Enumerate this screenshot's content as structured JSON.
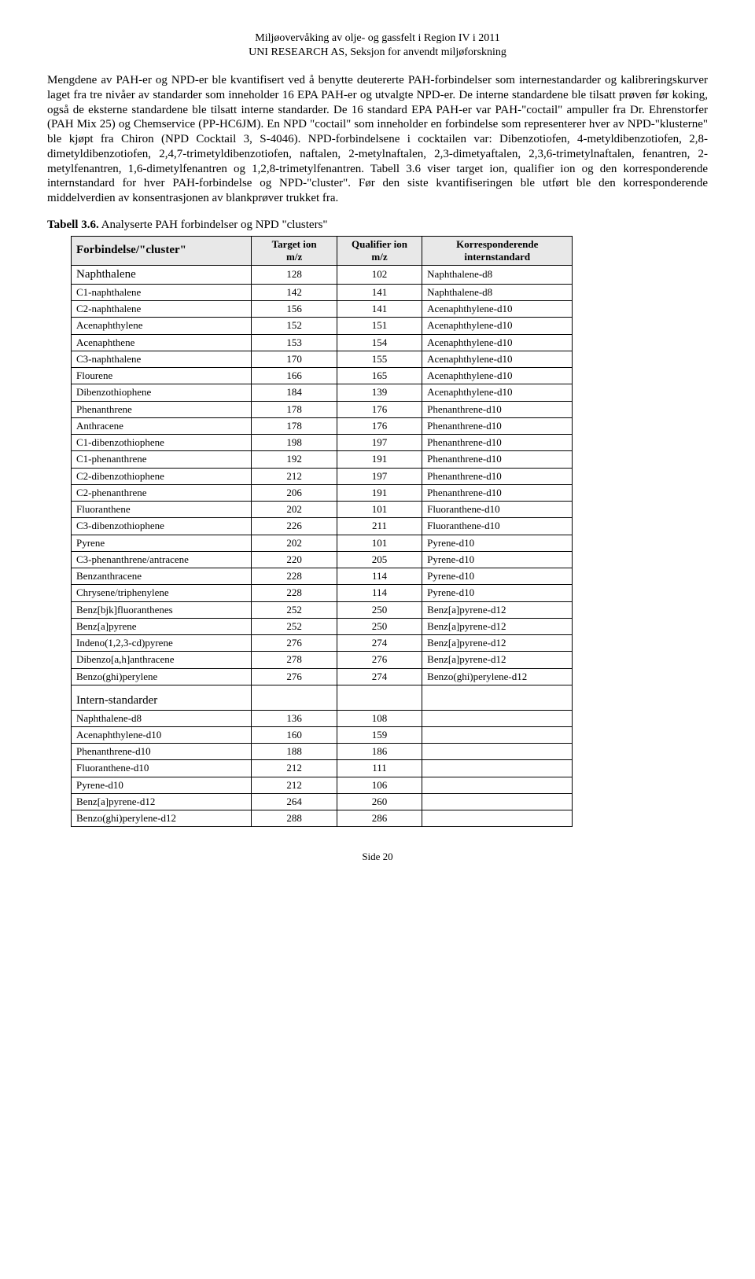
{
  "header": {
    "line1": "Miljøovervåking av olje- og gassfelt i Region IV i 2011",
    "line2": "UNI RESEARCH AS, Seksjon for anvendt miljøforskning"
  },
  "body_text": "Mengdene av PAH-er og NPD-er ble kvantifisert ved å benytte deutererte PAH-forbindelser som internestandarder og kalibreringskurver laget fra tre nivåer av standarder som inneholder 16 EPA PAH-er og utvalgte NPD-er. De interne standardene ble tilsatt prøven før koking, også de eksterne standardene ble tilsatt interne standarder. De 16 standard EPA PAH-er var PAH-\"coctail\" ampuller fra Dr. Ehrenstorfer (PAH Mix 25) og Chemservice (PP-HC6JM). En NPD \"coctail\" som inneholder en forbindelse som representerer hver av NPD-\"klusterne\" ble kjøpt fra Chiron (NPD Cocktail 3, S-4046). NPD-forbindelsene i cocktailen var: Dibenzotiofen, 4-metyldibenzotiofen, 2,8-dimetyldibenzotiofen, 2,4,7-trimetyldibenzotiofen, naftalen, 2-metylnaftalen, 2,3-dimetyaftalen, 2,3,6-trimetylnaftalen, fenantren, 2-metylfenantren, 1,6-dimetylfenantren og 1,2,8-trimetylfenantren. Tabell 3.6 viser target ion, qualifier ion og den korresponderende internstandard for hver PAH-forbindelse og NPD-\"cluster\". Før den siste kvantifiseringen ble utført ble den korresponderende middelverdien av konsentrasjonen av blankprøver trukket fra.",
  "table_title_bold": "Tabell 3.6.",
  "table_title_rest": " Analyserte PAH forbindelser og NPD \"clusters\"",
  "table": {
    "columns": [
      "Forbindelse/\"cluster\"",
      "Target ion m/z",
      "Qualifier ion m/z",
      "Korresponderende internstandard"
    ],
    "col_widths": [
      "36%",
      "17%",
      "17%",
      "30%"
    ],
    "header_bg": "#e8e8e8",
    "rows": [
      {
        "c": [
          "Naphthalene",
          "128",
          "102",
          "Naphthalene-d8"
        ],
        "large": true
      },
      {
        "c": [
          "C1-naphthalene",
          "142",
          "141",
          "Naphthalene-d8"
        ]
      },
      {
        "c": [
          "C2-naphthalene",
          "156",
          "141",
          "Acenaphthylene-d10"
        ]
      },
      {
        "c": [
          "Acenaphthylene",
          "152",
          "151",
          "Acenaphthylene-d10"
        ]
      },
      {
        "c": [
          "Acenaphthene",
          "153",
          "154",
          "Acenaphthylene-d10"
        ]
      },
      {
        "c": [
          "C3-naphthalene",
          "170",
          "155",
          "Acenaphthylene-d10"
        ]
      },
      {
        "c": [
          "Flourene",
          "166",
          "165",
          "Acenaphthylene-d10"
        ]
      },
      {
        "c": [
          "Dibenzothiophene",
          "184",
          "139",
          "Acenaphthylene-d10"
        ]
      },
      {
        "c": [
          "Phenanthrene",
          "178",
          "176",
          "Phenanthrene-d10"
        ]
      },
      {
        "c": [
          "Anthracene",
          "178",
          "176",
          "Phenanthrene-d10"
        ]
      },
      {
        "c": [
          "C1-dibenzothiophene",
          "198",
          "197",
          "Phenanthrene-d10"
        ]
      },
      {
        "c": [
          "C1-phenanthrene",
          "192",
          "191",
          "Phenanthrene-d10"
        ]
      },
      {
        "c": [
          "C2-dibenzothiophene",
          "212",
          "197",
          "Phenanthrene-d10"
        ]
      },
      {
        "c": [
          "C2-phenanthrene",
          "206",
          "191",
          "Phenanthrene-d10"
        ]
      },
      {
        "c": [
          "Fluoranthene",
          "202",
          "101",
          "Fluoranthene-d10"
        ]
      },
      {
        "c": [
          "C3-dibenzothiophene",
          "226",
          "211",
          "Fluoranthene-d10"
        ]
      },
      {
        "c": [
          "Pyrene",
          "202",
          "101",
          "Pyrene-d10"
        ]
      },
      {
        "c": [
          "C3-phenanthrene/antracene",
          "220",
          "205",
          "Pyrene-d10"
        ]
      },
      {
        "c": [
          "Benzanthracene",
          "228",
          "114",
          "Pyrene-d10"
        ]
      },
      {
        "c": [
          "Chrysene/triphenylene",
          "228",
          "114",
          "Pyrene-d10"
        ]
      },
      {
        "c": [
          "Benz[bjk]fluoranthenes",
          "252",
          "250",
          "Benz[a]pyrene-d12"
        ]
      },
      {
        "c": [
          "Benz[a]pyrene",
          "252",
          "250",
          "Benz[a]pyrene-d12"
        ]
      },
      {
        "c": [
          "Indeno(1,2,3-cd)pyrene",
          "276",
          "274",
          "Benz[a]pyrene-d12"
        ]
      },
      {
        "c": [
          "Dibenzo[a,h]anthracene",
          "278",
          "276",
          "Benz[a]pyrene-d12"
        ]
      },
      {
        "c": [
          "Benzo(ghi)perylene",
          "276",
          "274",
          "Benzo(ghi)perylene-d12"
        ]
      }
    ],
    "section_label": "Intern-standarder",
    "rows2": [
      {
        "c": [
          "Naphthalene-d8",
          "136",
          "108",
          ""
        ]
      },
      {
        "c": [
          "Acenaphthylene-d10",
          "160",
          "159",
          ""
        ]
      },
      {
        "c": [
          "Phenanthrene-d10",
          "188",
          "186",
          ""
        ]
      },
      {
        "c": [
          "Fluoranthene-d10",
          "212",
          "111",
          ""
        ]
      },
      {
        "c": [
          "Pyrene-d10",
          "212",
          "106",
          ""
        ]
      },
      {
        "c": [
          "Benz[a]pyrene-d12",
          "264",
          "260",
          ""
        ]
      },
      {
        "c": [
          "Benzo(ghi)perylene-d12",
          "288",
          "286",
          ""
        ]
      }
    ]
  },
  "footer": "Side 20"
}
